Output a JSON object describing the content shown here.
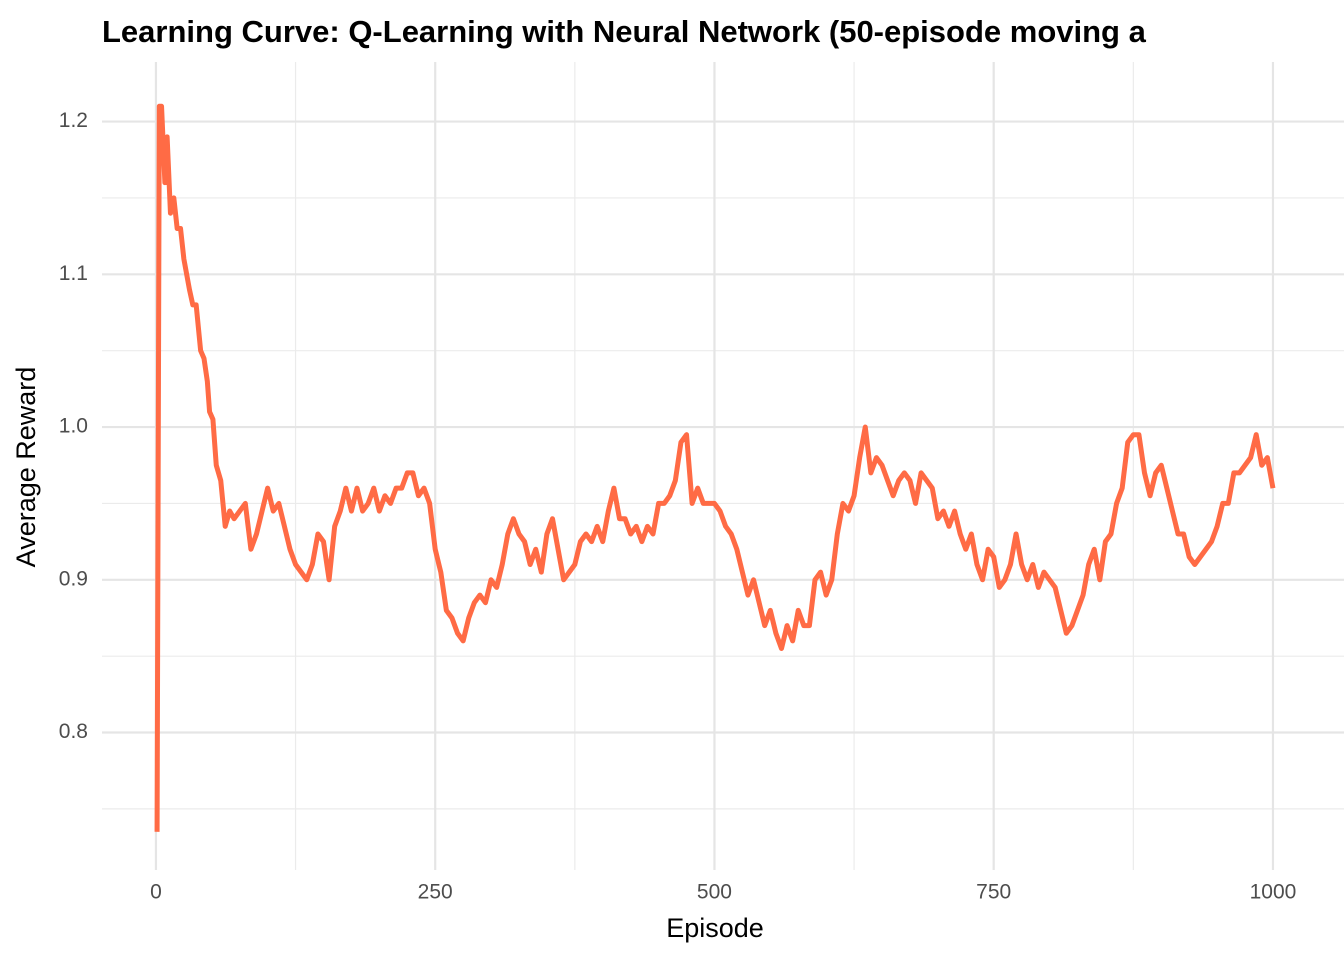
{
  "chart_data": {
    "type": "line",
    "title": "Learning Curve: Q-Learning with Neural Network (50-episode moving a",
    "x_label": "Episode",
    "y_label": "Average Reward",
    "xlim": [
      -48.3,
      1063.6
    ],
    "ylim": [
      0.71,
      1.239
    ],
    "xticks": [
      0,
      250,
      500,
      750,
      1000
    ],
    "yticks": [
      0.8,
      0.9,
      {
        "value": 1,
        "label": "1.0"
      },
      1.1,
      1.2
    ],
    "grid": true,
    "x": [
      1,
      3,
      5,
      8,
      10,
      13,
      16,
      19,
      22,
      25,
      30,
      33,
      36,
      40,
      43,
      46,
      48,
      51,
      54,
      58,
      62,
      66,
      70,
      75,
      80,
      85,
      90,
      95,
      100,
      105,
      110,
      115,
      120,
      125,
      130,
      135,
      140,
      145,
      150,
      155,
      160,
      165,
      170,
      175,
      180,
      185,
      190,
      195,
      200,
      205,
      210,
      215,
      220,
      225,
      230,
      235,
      240,
      245,
      250,
      255,
      260,
      265,
      270,
      275,
      280,
      285,
      290,
      295,
      300,
      305,
      310,
      315,
      320,
      325,
      330,
      335,
      340,
      345,
      350,
      355,
      360,
      365,
      370,
      375,
      380,
      385,
      390,
      395,
      400,
      405,
      410,
      415,
      420,
      425,
      430,
      435,
      440,
      445,
      450,
      455,
      460,
      465,
      470,
      475,
      480,
      485,
      490,
      495,
      500,
      505,
      510,
      515,
      520,
      525,
      530,
      535,
      540,
      545,
      550,
      555,
      560,
      565,
      570,
      575,
      580,
      585,
      590,
      595,
      600,
      605,
      610,
      615,
      620,
      625,
      630,
      635,
      640,
      645,
      650,
      655,
      660,
      665,
      670,
      675,
      680,
      685,
      690,
      695,
      700,
      705,
      710,
      715,
      720,
      725,
      730,
      735,
      740,
      745,
      750,
      755,
      760,
      765,
      770,
      775,
      780,
      785,
      790,
      795,
      800,
      805,
      810,
      815,
      820,
      825,
      830,
      835,
      840,
      845,
      850,
      855,
      860,
      865,
      870,
      875,
      880,
      885,
      890,
      895,
      900,
      905,
      910,
      915,
      920,
      925,
      930,
      935,
      940,
      945,
      950,
      955,
      960,
      965,
      970,
      975,
      980,
      985,
      990,
      995,
      1000
    ],
    "series": [
      {
        "name": "Average Reward",
        "color": "#ff6b45",
        "values": [
          0.735,
          1.21,
          1.21,
          1.16,
          1.19,
          1.14,
          1.15,
          1.13,
          1.13,
          1.11,
          1.09,
          1.08,
          1.08,
          1.05,
          1.045,
          1.03,
          1.01,
          1.005,
          0.975,
          0.965,
          0.935,
          0.945,
          0.94,
          0.945,
          0.95,
          0.92,
          0.93,
          0.945,
          0.96,
          0.945,
          0.95,
          0.935,
          0.92,
          0.91,
          0.905,
          0.9,
          0.91,
          0.93,
          0.925,
          0.9,
          0.935,
          0.945,
          0.96,
          0.945,
          0.96,
          0.945,
          0.95,
          0.96,
          0.945,
          0.955,
          0.95,
          0.96,
          0.96,
          0.97,
          0.97,
          0.955,
          0.96,
          0.95,
          0.92,
          0.905,
          0.88,
          0.875,
          0.865,
          0.86,
          0.875,
          0.885,
          0.89,
          0.885,
          0.9,
          0.895,
          0.91,
          0.93,
          0.94,
          0.93,
          0.925,
          0.91,
          0.92,
          0.905,
          0.93,
          0.94,
          0.92,
          0.9,
          0.905,
          0.91,
          0.925,
          0.93,
          0.925,
          0.935,
          0.925,
          0.945,
          0.96,
          0.94,
          0.94,
          0.93,
          0.935,
          0.925,
          0.935,
          0.93,
          0.95,
          0.95,
          0.955,
          0.965,
          0.99,
          0.995,
          0.95,
          0.96,
          0.95,
          0.95,
          0.95,
          0.945,
          0.935,
          0.93,
          0.92,
          0.905,
          0.89,
          0.9,
          0.885,
          0.87,
          0.88,
          0.865,
          0.855,
          0.87,
          0.86,
          0.88,
          0.87,
          0.87,
          0.9,
          0.905,
          0.89,
          0.9,
          0.93,
          0.95,
          0.945,
          0.955,
          0.98,
          1.0,
          0.97,
          0.98,
          0.975,
          0.965,
          0.955,
          0.965,
          0.97,
          0.965,
          0.95,
          0.97,
          0.965,
          0.96,
          0.94,
          0.945,
          0.935,
          0.945,
          0.93,
          0.92,
          0.93,
          0.91,
          0.9,
          0.92,
          0.915,
          0.895,
          0.9,
          0.91,
          0.93,
          0.91,
          0.9,
          0.91,
          0.895,
          0.905,
          0.9,
          0.895,
          0.88,
          0.865,
          0.87,
          0.88,
          0.89,
          0.91,
          0.92,
          0.9,
          0.925,
          0.93,
          0.95,
          0.96,
          0.99,
          0.995,
          0.995,
          0.97,
          0.955,
          0.97,
          0.975,
          0.96,
          0.945,
          0.93,
          0.93,
          0.915,
          0.91,
          0.915,
          0.92,
          0.925,
          0.935,
          0.95,
          0.95,
          0.97,
          0.97,
          0.975,
          0.98,
          0.995,
          0.975,
          0.98,
          0.96
        ]
      }
    ]
  }
}
